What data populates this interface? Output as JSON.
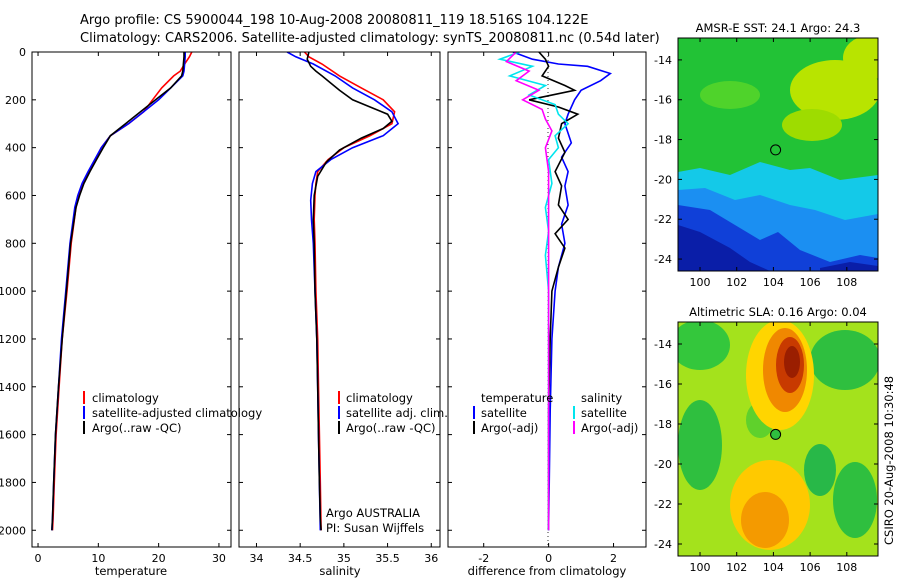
{
  "header": {
    "line1": "Argo profile: CS 5900044_198 10-Aug-2008 20080811_119 18.516S 104.122E",
    "line2": "Climatology: CARS2006. Satellite-adjusted climatology: synTS_20080811.nc (0.54d later)"
  },
  "chart_data": [
    {
      "id": "temperature",
      "type": "line",
      "xlabel": "temperature",
      "xlim": [
        -1,
        32
      ],
      "ylim": [
        2070,
        0
      ],
      "xticks": [
        "0",
        "10",
        "20",
        "30"
      ],
      "xtick_values": [
        0,
        10,
        20,
        30
      ],
      "yticks": [
        "0",
        "200",
        "400",
        "600",
        "800",
        "1000",
        "1200",
        "1400",
        "1600",
        "1800",
        "2000"
      ],
      "ytick_values": [
        0,
        200,
        400,
        600,
        800,
        1000,
        1200,
        1400,
        1600,
        1800,
        2000
      ],
      "series": [
        {
          "name": "climatology",
          "color": "#ff0000",
          "x": [
            25.5,
            25.1,
            24.3,
            23.6,
            22.5,
            20.5,
            19.0,
            17.5,
            15.0,
            12.0,
            10.5,
            9.5,
            8.5,
            7.5,
            6.8,
            6.3,
            5.5,
            4.8,
            4.0,
            3.5,
            3.0,
            2.7,
            2.5,
            2.4
          ],
          "y": [
            0,
            20,
            50,
            80,
            100,
            150,
            200,
            250,
            300,
            350,
            400,
            450,
            500,
            550,
            600,
            650,
            800,
            1000,
            1200,
            1400,
            1600,
            1800,
            1950,
            2000
          ]
        },
        {
          "name": "satellite-adjusted climatology",
          "color": "#0000ff",
          "x": [
            24.4,
            24.4,
            24.3,
            24.2,
            24.0,
            22.0,
            20.0,
            17.5,
            15.0,
            12.0,
            10.5,
            9.4,
            8.3,
            7.3,
            6.6,
            6.1,
            5.3,
            4.6,
            3.9,
            3.4,
            2.9,
            2.6,
            2.4,
            2.3
          ],
          "y": [
            0,
            20,
            50,
            80,
            100,
            150,
            200,
            250,
            300,
            350,
            400,
            450,
            500,
            550,
            600,
            650,
            800,
            1000,
            1200,
            1400,
            1600,
            1800,
            1950,
            2000
          ]
        },
        {
          "name": "Argo(..raw -QC)",
          "color": "#000000",
          "x": [
            24.2,
            24.2,
            24.1,
            24.0,
            23.8,
            22.0,
            19.5,
            17.0,
            14.5,
            12.0,
            10.8,
            9.7,
            8.6,
            7.6,
            6.9,
            6.3,
            5.4,
            4.7,
            4.0,
            3.4,
            2.9,
            2.6,
            2.4,
            2.3
          ],
          "y": [
            0,
            20,
            50,
            80,
            100,
            150,
            200,
            250,
            300,
            350,
            400,
            450,
            500,
            550,
            600,
            650,
            800,
            1000,
            1200,
            1400,
            1600,
            1800,
            1950,
            2000
          ]
        }
      ],
      "legend": [
        "climatology",
        "satellite-adjusted climatology",
        "Argo(..raw -QC)"
      ],
      "legend_position": "bottom-right"
    },
    {
      "id": "salinity",
      "type": "line",
      "xlabel": "salinity",
      "xlim": [
        33.8,
        36.1
      ],
      "ylim": [
        2070,
        0
      ],
      "xticks": [
        "34",
        "34.5",
        "35",
        "35.5",
        "36"
      ],
      "xtick_values": [
        34,
        34.5,
        35,
        35.5,
        36
      ],
      "yticks": [
        "0",
        "200",
        "400",
        "600",
        "800",
        "1000",
        "1200",
        "1400",
        "1600",
        "1800",
        "2000"
      ],
      "ytick_values": [
        0,
        200,
        400,
        600,
        800,
        1000,
        1200,
        1400,
        1600,
        1800,
        2000
      ],
      "series": [
        {
          "name": "climatology",
          "color": "#ff0000",
          "x": [
            34.55,
            34.6,
            34.75,
            34.95,
            35.2,
            35.45,
            35.58,
            35.55,
            35.3,
            35.0,
            34.82,
            34.7,
            34.68,
            34.67,
            34.66,
            34.67,
            34.68,
            34.7,
            34.71,
            34.72,
            34.73,
            34.74
          ],
          "y": [
            0,
            20,
            50,
            100,
            150,
            200,
            250,
            300,
            350,
            400,
            450,
            500,
            550,
            600,
            700,
            800,
            1000,
            1200,
            1400,
            1600,
            1800,
            2000
          ]
        },
        {
          "name": "satellite adj. clim.",
          "color": "#0000ff",
          "x": [
            34.35,
            34.45,
            34.65,
            34.9,
            35.1,
            35.35,
            35.55,
            35.62,
            35.45,
            35.1,
            34.85,
            34.68,
            34.64,
            34.62,
            34.63,
            34.65,
            34.67,
            34.69,
            34.7,
            34.71,
            34.72,
            34.73
          ],
          "y": [
            0,
            20,
            50,
            100,
            150,
            200,
            250,
            300,
            350,
            400,
            450,
            500,
            550,
            620,
            700,
            800,
            1000,
            1200,
            1400,
            1600,
            1800,
            2000
          ]
        },
        {
          "name": "Argo(..raw -QC)",
          "color": "#000000",
          "x": [
            34.6,
            34.58,
            34.62,
            34.68,
            34.75,
            34.85,
            34.95,
            35.1,
            35.3,
            35.5,
            35.55,
            35.45,
            35.2,
            34.95,
            34.8,
            34.7,
            34.66,
            34.65,
            34.66,
            34.67,
            34.69,
            34.7,
            34.71,
            34.72,
            34.73,
            34.74
          ],
          "y": [
            0,
            30,
            60,
            80,
            100,
            130,
            160,
            200,
            230,
            260,
            290,
            320,
            360,
            410,
            460,
            520,
            600,
            700,
            800,
            1000,
            1200,
            1400,
            1600,
            1800,
            1950,
            2000
          ]
        }
      ],
      "legend": [
        "climatology",
        "satellite adj. clim.",
        "Argo(..raw -QC)"
      ],
      "legend_position": "bottom-right",
      "annotations": [
        "Argo AUSTRALIA",
        "PI: Susan Wijffels"
      ]
    },
    {
      "id": "difference",
      "type": "line",
      "xlabel": "difference from climatology",
      "xlim": [
        -3.1,
        3.0
      ],
      "ylim": [
        2070,
        0
      ],
      "xticks": [
        "-2",
        "0",
        "2"
      ],
      "xtick_values": [
        -2,
        0,
        2
      ],
      "yticks": [
        "0",
        "200",
        "400",
        "600",
        "800",
        "1000",
        "1200",
        "1400",
        "1600",
        "1800",
        "2000"
      ],
      "ytick_values": [
        0,
        200,
        400,
        600,
        800,
        1000,
        1200,
        1400,
        1600,
        1800,
        2000
      ],
      "series": [
        {
          "name": "temperature satellite",
          "color": "#0000ff",
          "x": [
            -1.1,
            -0.5,
            0.3,
            1.2,
            1.9,
            1.6,
            1.0,
            0.8,
            0.6,
            0.5,
            0.7,
            0.4,
            0.6,
            0.5,
            0.6,
            0.4,
            0.5,
            0.3,
            0.2,
            0.1,
            0.05,
            0.0
          ],
          "y": [
            0,
            30,
            50,
            60,
            90,
            120,
            160,
            200,
            260,
            300,
            380,
            440,
            500,
            560,
            640,
            720,
            800,
            900,
            1000,
            1200,
            1500,
            2000
          ]
        },
        {
          "name": "temperature Argo(-adj)",
          "color": "#000000",
          "x": [
            -0.3,
            -0.1,
            0.0,
            -0.2,
            0.5,
            0.8,
            -0.6,
            0.3,
            0.9,
            0.4,
            0.3,
            0.5,
            0.2,
            0.4,
            0.3,
            0.6,
            0.2,
            0.5,
            0.3,
            0.1,
            0.05,
            0.0,
            0.0
          ],
          "y": [
            0,
            30,
            60,
            100,
            140,
            160,
            200,
            230,
            260,
            300,
            360,
            420,
            500,
            560,
            640,
            700,
            760,
            820,
            900,
            1000,
            1200,
            1500,
            2000
          ]
        },
        {
          "name": "salinity satellite",
          "color": "#00e5ee",
          "x": [
            -0.9,
            -1.5,
            -0.5,
            -1.2,
            -0.1,
            -0.6,
            0.2,
            0.3,
            0.6,
            0.2,
            0.3,
            0.0,
            0.1,
            -0.1,
            0.0,
            -0.1,
            0.0,
            0.0,
            0.0
          ],
          "y": [
            0,
            30,
            60,
            100,
            140,
            180,
            220,
            260,
            300,
            350,
            400,
            450,
            550,
            650,
            750,
            850,
            1000,
            1500,
            2000
          ]
        },
        {
          "name": "salinity Argo(-adj)",
          "color": "#ff00ff",
          "x": [
            -1.0,
            -1.3,
            -0.6,
            -1.0,
            -0.3,
            -0.8,
            -0.2,
            -0.1,
            0.1,
            -0.1,
            0.0,
            0.0,
            0.0,
            0.0
          ],
          "y": [
            0,
            40,
            80,
            120,
            160,
            200,
            240,
            280,
            330,
            400,
            500,
            700,
            1000,
            2000
          ]
        }
      ],
      "legend": [
        "temperature",
        "satellite",
        "Argo(-adj)",
        "salinity",
        "satellite",
        "Argo(-adj)"
      ],
      "legend_position": "bottom"
    },
    {
      "id": "sst_map",
      "type": "heatmap",
      "title": "AMSR-E SST: 24.1 Argo: 24.3",
      "xlim": [
        98.8,
        109.7
      ],
      "ylim": [
        -24.6,
        -12.9
      ],
      "xticks": [
        "100",
        "102",
        "104",
        "106",
        "108"
      ],
      "xtick_values": [
        100,
        102,
        104,
        106,
        108
      ],
      "yticks": [
        "-14",
        "-16",
        "-18",
        "-20",
        "-22",
        "-24"
      ],
      "ytick_values": [
        -14,
        -16,
        -18,
        -20,
        -22,
        -24
      ],
      "marker": {
        "lon": 104.12,
        "lat": -18.52
      }
    },
    {
      "id": "sla_map",
      "type": "heatmap",
      "title": "Altimetric SLA: 0.16 Argo: 0.04",
      "xlim": [
        98.8,
        109.7
      ],
      "ylim": [
        -24.6,
        -12.9
      ],
      "xticks": [
        "100",
        "102",
        "104",
        "106",
        "108"
      ],
      "xtick_values": [
        100,
        102,
        104,
        106,
        108
      ],
      "yticks": [
        "-14",
        "-16",
        "-18",
        "-20",
        "-22",
        "-24"
      ],
      "ytick_values": [
        -14,
        -16,
        -18,
        -20,
        -22,
        -24
      ],
      "marker": {
        "lon": 104.12,
        "lat": -18.52
      }
    }
  ],
  "footer_stamp": "CSIRO 20-Aug-2008 10:30:48"
}
